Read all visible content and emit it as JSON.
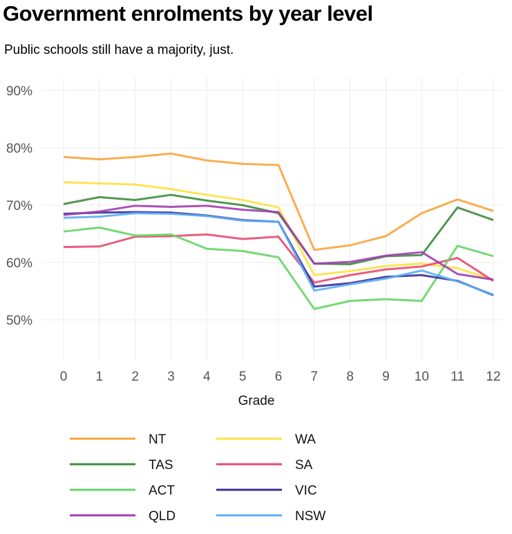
{
  "header": {
    "title": "Government enrolments by year level",
    "subtitle": "Public schools still have a majority, just."
  },
  "chart_data": {
    "type": "line",
    "title": "Government enrolments by year level",
    "subtitle": "Public schools still have a majority, just.",
    "xlabel": "Grade",
    "ylabel": "",
    "x": [
      0,
      1,
      2,
      3,
      4,
      5,
      6,
      7,
      8,
      9,
      10,
      11,
      12
    ],
    "x_tick_labels": [
      "0",
      "1",
      "2",
      "3",
      "4",
      "5",
      "6",
      "7",
      "8",
      "9",
      "10",
      "11",
      "12"
    ],
    "y_ticks": [
      50,
      60,
      70,
      80,
      90
    ],
    "y_tick_labels": [
      "50%",
      "60%",
      "70%",
      "80%",
      "90%"
    ],
    "ylim": [
      42.5,
      92
    ],
    "xlim": [
      -0.25,
      12.25
    ],
    "grid": true,
    "legend_position": "bottom",
    "series": [
      {
        "name": "NT",
        "color": "#F9A43C",
        "values": [
          78.4,
          78.0,
          78.4,
          79.0,
          77.8,
          77.2,
          77.0,
          62.2,
          63.0,
          64.6,
          68.6,
          71.0,
          69.0
        ]
      },
      {
        "name": "WA",
        "color": "#FDE143",
        "values": [
          74.0,
          73.8,
          73.6,
          72.8,
          71.8,
          70.9,
          69.6,
          57.8,
          58.5,
          59.4,
          59.8,
          59.0,
          57.0
        ]
      },
      {
        "name": "TAS",
        "color": "#3F8C3F",
        "values": [
          70.2,
          71.4,
          70.9,
          71.8,
          70.8,
          70.0,
          68.6,
          59.8,
          59.7,
          61.1,
          61.3,
          69.6,
          67.4
        ]
      },
      {
        "name": "SA",
        "color": "#E84B6E",
        "values": [
          62.7,
          62.8,
          64.5,
          64.6,
          64.9,
          64.1,
          64.5,
          56.5,
          57.8,
          58.8,
          59.3,
          60.8,
          56.8
        ]
      },
      {
        "name": "ACT",
        "color": "#66D466",
        "values": [
          65.4,
          66.1,
          64.7,
          64.9,
          62.4,
          62.0,
          60.9,
          51.9,
          53.3,
          53.6,
          53.3,
          62.9,
          61.1
        ]
      },
      {
        "name": "VIC",
        "color": "#3D2E9B",
        "values": [
          68.5,
          68.7,
          68.8,
          68.7,
          68.2,
          67.4,
          67.1,
          55.8,
          56.4,
          57.5,
          57.8,
          56.8,
          54.3
        ]
      },
      {
        "name": "QLD",
        "color": "#A23EB0",
        "values": [
          68.3,
          68.9,
          69.9,
          69.7,
          69.9,
          69.2,
          68.8,
          59.8,
          60.1,
          61.2,
          61.8,
          58.0,
          57.0
        ]
      },
      {
        "name": "NSW",
        "color": "#5AAEF7",
        "values": [
          67.8,
          68.0,
          68.6,
          68.5,
          68.1,
          67.3,
          67.1,
          55.1,
          56.2,
          57.2,
          58.6,
          56.7,
          54.4
        ]
      }
    ],
    "legend": [
      {
        "name": "NT",
        "color": "#F9A43C"
      },
      {
        "name": "TAS",
        "color": "#3F8C3F"
      },
      {
        "name": "ACT",
        "color": "#66D466"
      },
      {
        "name": "QLD",
        "color": "#A23EB0"
      },
      {
        "name": "WA",
        "color": "#FDE143"
      },
      {
        "name": "SA",
        "color": "#E84B6E"
      },
      {
        "name": "VIC",
        "color": "#3D2E9B"
      },
      {
        "name": "NSW",
        "color": "#5AAEF7"
      }
    ]
  }
}
